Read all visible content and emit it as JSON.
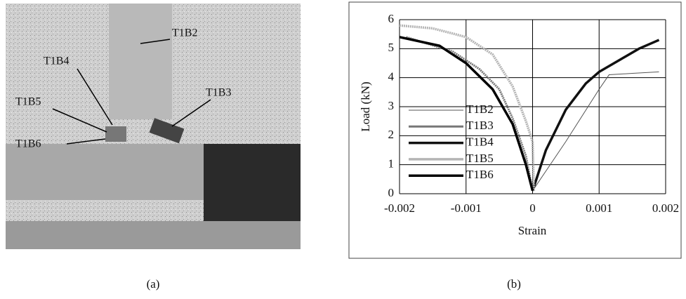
{
  "photo": {
    "labels": [
      "T1B2",
      "T1B4",
      "T1B3",
      "T1B5",
      "T1B6"
    ],
    "caption": "(a)"
  },
  "chart_caption": "(b)",
  "chart_data": {
    "type": "line",
    "x_label": "Strain",
    "y_label": "Load (kN)",
    "xlim": [
      -0.002,
      0.002
    ],
    "xticks": [
      -0.002,
      -0.001,
      0,
      0.001,
      0.002
    ],
    "ylim": [
      0,
      6
    ],
    "yticks": [
      0,
      1,
      2,
      3,
      4,
      5,
      6
    ],
    "grid": true,
    "series": [
      {
        "name": "T1B2",
        "color": "#555555",
        "line_width": 1,
        "x": [
          0,
          0.0005,
          0.001,
          0.00115,
          0.0015,
          0.0019
        ],
        "values": [
          0.1,
          1.8,
          3.6,
          4.1,
          4.15,
          4.2
        ]
      },
      {
        "name": "T1B3",
        "color": "#777777",
        "line_width": 3,
        "x": [
          -0.0019,
          -0.0012,
          -0.0008,
          -0.0005,
          -0.0003,
          -0.0001,
          0
        ],
        "values": [
          5.4,
          4.9,
          4.3,
          3.6,
          2.6,
          1.3,
          0.1
        ]
      },
      {
        "name": "T1B4",
        "color": "#111111",
        "line_width": 3.5,
        "x": [
          0,
          0.0002,
          0.0005,
          0.0008,
          0.001,
          0.0013,
          0.0016,
          0.0019
        ],
        "values": [
          0.1,
          1.5,
          2.9,
          3.8,
          4.2,
          4.6,
          5.0,
          5.3
        ]
      },
      {
        "name": "T1B5",
        "color": "#b5b5b5",
        "line_width": 3.5,
        "x": [
          -0.002,
          -0.0015,
          -0.001,
          -0.0006,
          -0.0003,
          -0.0001,
          0,
          2e-05
        ],
        "values": [
          5.8,
          5.7,
          5.4,
          4.8,
          3.7,
          2.5,
          1.8,
          0.1
        ]
      },
      {
        "name": "T1B6",
        "color": "#000000",
        "line_width": 3.5,
        "x": [
          -0.002,
          -0.0014,
          -0.001,
          -0.0006,
          -0.0003,
          -0.0001,
          0
        ],
        "values": [
          5.4,
          5.1,
          4.5,
          3.6,
          2.4,
          1.0,
          0.1
        ]
      }
    ]
  }
}
